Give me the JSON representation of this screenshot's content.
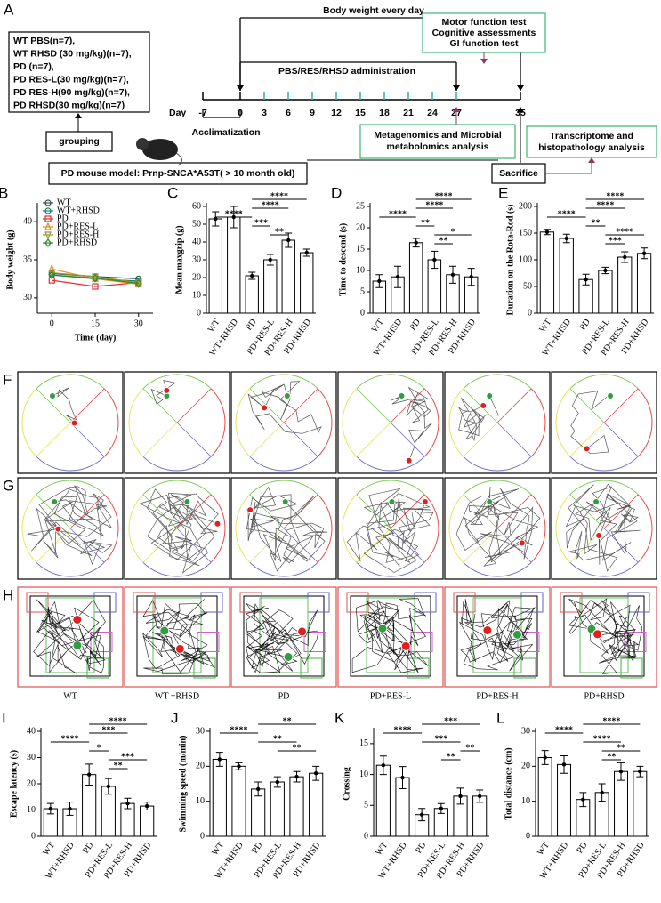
{
  "diagram": {
    "label": "A",
    "groups": [
      "WT PBS(n=7),",
      "WT RHSD (30 mg/kg)(n=7),",
      "PD (n=7),",
      "PD RES-L(30 mg/kg)(n=7),",
      "PD RES-H(90 mg/kg)(n=7),",
      "PD RHSD(30 mg/kg)(n=7)"
    ],
    "grouping": "grouping",
    "model": "PD mouse model: Prnp-SNCA*A53T( > 10 month old)",
    "body_weight": "Body weight every day",
    "tests": [
      "Motor function test",
      "Cognitive assessments",
      "GI function test"
    ],
    "administration": "PBS/RES/RHSD administration",
    "day_label": "Day",
    "days": [
      -7,
      0,
      3,
      6,
      9,
      12,
      15,
      18,
      21,
      24,
      27,
      35
    ],
    "acclimatization": "Acclimatization",
    "metagenomics": [
      "Metagenomics and Microbial",
      "metabolomics analysis"
    ],
    "sacrifice": "Sacrifice",
    "transcriptome": [
      "Transcriptome and",
      "histopathology analysis"
    ]
  },
  "trajectories": {
    "labels": [
      "F",
      "G",
      "H"
    ],
    "groups": [
      "WT",
      "WT +RHSD",
      "PD",
      "PD+RES-L",
      "PD+RES-H",
      "PD+RHSD"
    ]
  },
  "chart_data": [
    {
      "type": "line",
      "label": "B",
      "xlabel": "Time (day)",
      "ylabel": "Body weight (g)",
      "x": [
        0,
        15,
        30
      ],
      "xlim": [
        -5,
        35
      ],
      "xticks": [
        0,
        15,
        30
      ],
      "ylim": [
        28,
        42
      ],
      "yticks": [
        30,
        35,
        40
      ],
      "series": [
        {
          "name": "WT",
          "color": "#2f4f4f",
          "marker": "circle",
          "values": [
            33.2,
            32.8,
            32.5
          ]
        },
        {
          "name": "WT+RHSD",
          "color": "#1f7a6a",
          "marker": "circle",
          "values": [
            33.0,
            32.5,
            32.2
          ]
        },
        {
          "name": "PD",
          "color": "#e03030",
          "marker": "square",
          "values": [
            32.3,
            31.5,
            32.0
          ]
        },
        {
          "name": "PD+RES-L",
          "color": "#e8892c",
          "marker": "triangle",
          "values": [
            33.8,
            32.5,
            31.8
          ]
        },
        {
          "name": "PD+RES-H",
          "color": "#9a9a2a",
          "marker": "triangle-down",
          "values": [
            33.3,
            32.8,
            32.0
          ]
        },
        {
          "name": "PD+RHSD",
          "color": "#2e8b2e",
          "marker": "diamond",
          "values": [
            33.0,
            32.6,
            31.9
          ]
        }
      ]
    },
    {
      "type": "bar",
      "label": "C",
      "ylabel": "Mean maxgrip (g)",
      "categories": [
        "WT",
        "WT+RHSD",
        "PD",
        "PD+RES-L",
        "PD+RES-H",
        "PD+RHSD"
      ],
      "values": [
        53,
        54,
        21,
        30,
        41,
        34
      ],
      "errors": [
        4,
        6,
        2,
        3,
        4,
        2
      ],
      "ylim": [
        0,
        60
      ],
      "yticks": [
        0,
        10,
        20,
        30,
        40,
        50,
        60
      ],
      "comparisons": [
        {
          "label": "****",
          "pair": [
            "PD",
            "PD+RHSD"
          ]
        },
        {
          "label": "****",
          "pair": [
            "PD",
            "PD+RES-H"
          ]
        },
        {
          "label": "****",
          "pair": [
            "WT",
            "PD"
          ]
        },
        {
          "label": "***",
          "pair": [
            "PD",
            "PD+RES-L"
          ]
        },
        {
          "label": "**",
          "pair": [
            "PD+RES-L",
            "PD+RES-H"
          ]
        }
      ]
    },
    {
      "type": "bar",
      "label": "D",
      "ylabel": "Time to descend (s)",
      "categories": [
        "WT",
        "WT+RHSD",
        "PD",
        "PD+RES-L",
        "PD+RES-H",
        "PD+RHSD"
      ],
      "values": [
        7.5,
        8.5,
        16.5,
        12.5,
        9,
        8.5
      ],
      "errors": [
        1.5,
        2.5,
        1,
        2,
        2,
        2
      ],
      "ylim": [
        0,
        25
      ],
      "yticks": [
        0,
        5,
        10,
        15,
        20,
        25
      ],
      "comparisons": [
        {
          "label": "****",
          "pair": [
            "PD",
            "PD+RHSD"
          ]
        },
        {
          "label": "****",
          "pair": [
            "PD",
            "PD+RES-H"
          ]
        },
        {
          "label": "****",
          "pair": [
            "WT",
            "PD"
          ]
        },
        {
          "label": "**",
          "pair": [
            "PD",
            "PD+RES-L"
          ]
        },
        {
          "label": "*",
          "pair": [
            "PD+RES-L",
            "PD+RHSD"
          ]
        },
        {
          "label": "**",
          "pair": [
            "PD+RES-L",
            "PD+RES-H"
          ]
        }
      ]
    },
    {
      "type": "bar",
      "label": "E",
      "ylabel": "Duration on the Rota-Rod (s)",
      "categories": [
        "WT",
        "WT+RHSD",
        "PD",
        "PD+RES-L",
        "PD+RES-H",
        "PD+RHSD"
      ],
      "values": [
        152,
        140,
        63,
        80,
        105,
        112
      ],
      "errors": [
        5,
        8,
        10,
        6,
        10,
        10
      ],
      "ylim": [
        0,
        200
      ],
      "yticks": [
        0,
        50,
        100,
        150,
        200
      ],
      "comparisons": [
        {
          "label": "****",
          "pair": [
            "PD",
            "PD+RHSD"
          ]
        },
        {
          "label": "****",
          "pair": [
            "PD",
            "PD+RES-H"
          ]
        },
        {
          "label": "****",
          "pair": [
            "WT",
            "PD"
          ]
        },
        {
          "label": "**",
          "pair": [
            "PD",
            "PD+RES-L"
          ]
        },
        {
          "label": "****",
          "pair": [
            "PD+RES-L",
            "PD+RHSD"
          ]
        },
        {
          "label": "***",
          "pair": [
            "PD+RES-L",
            "PD+RES-H"
          ]
        }
      ]
    },
    {
      "type": "bar",
      "label": "I",
      "ylabel": "Escape latency (s)",
      "categories": [
        "WT",
        "WT+RHSD",
        "PD",
        "PD+RES-L",
        "PD+RES-H",
        "PD+RHSD"
      ],
      "values": [
        10.5,
        10.5,
        23.5,
        19,
        12.5,
        11.5
      ],
      "errors": [
        2,
        2.5,
        4,
        3,
        2,
        1.5
      ],
      "ylim": [
        0,
        40
      ],
      "yticks": [
        0,
        10,
        20,
        30,
        40
      ],
      "comparisons": [
        {
          "label": "****",
          "pair": [
            "PD",
            "PD+RHSD"
          ]
        },
        {
          "label": "***",
          "pair": [
            "PD",
            "PD+RES-H"
          ]
        },
        {
          "label": "****",
          "pair": [
            "WT",
            "PD"
          ]
        },
        {
          "label": "*",
          "pair": [
            "PD",
            "PD+RES-L"
          ]
        },
        {
          "label": "***",
          "pair": [
            "PD+RES-L",
            "PD+RHSD"
          ]
        },
        {
          "label": "**",
          "pair": [
            "PD+RES-L",
            "PD+RES-H"
          ]
        }
      ]
    },
    {
      "type": "bar",
      "label": "J",
      "ylabel": "Swimming speed (m/min)",
      "categories": [
        "WT",
        "WT+RHSD",
        "PD",
        "PD+RES-L",
        "PD+RES-H",
        "PD+RHSD"
      ],
      "values": [
        22,
        20,
        13.5,
        15.5,
        17,
        18
      ],
      "errors": [
        2,
        1,
        2,
        1.5,
        1.5,
        2
      ],
      "ylim": [
        0,
        30
      ],
      "yticks": [
        0,
        10,
        20,
        30
      ],
      "comparisons": [
        {
          "label": "**",
          "pair": [
            "PD",
            "PD+RHSD"
          ]
        },
        {
          "label": "****",
          "pair": [
            "WT",
            "PD"
          ]
        },
        {
          "label": "**",
          "pair": [
            "PD",
            "PD+RES-H"
          ]
        },
        {
          "label": "**",
          "pair": [
            "PD+RES-L",
            "PD+RHSD"
          ]
        }
      ]
    },
    {
      "type": "bar",
      "label": "K",
      "ylabel": "Crossing",
      "categories": [
        "WT",
        "WT+RHSD",
        "PD",
        "PD+RES-L",
        "PD+RES-H",
        "PD+RHSD"
      ],
      "values": [
        11.5,
        9.5,
        3.5,
        4.5,
        6.5,
        6.5
      ],
      "errors": [
        1.5,
        1.8,
        1,
        0.8,
        1.3,
        1
      ],
      "ylim": [
        0,
        17
      ],
      "yticks": [
        0,
        5,
        10,
        15
      ],
      "comparisons": [
        {
          "label": "***",
          "pair": [
            "PD",
            "PD+RHSD"
          ]
        },
        {
          "label": "****",
          "pair": [
            "WT",
            "PD"
          ]
        },
        {
          "label": "***",
          "pair": [
            "PD",
            "PD+RES-H"
          ]
        },
        {
          "label": "**",
          "pair": [
            "PD+RES-H",
            "PD+RHSD"
          ]
        },
        {
          "label": "**",
          "pair": [
            "PD+RES-L",
            "PD+RES-H"
          ]
        }
      ]
    },
    {
      "type": "bar",
      "label": "L",
      "ylabel": "Total distance (cm)",
      "categories": [
        "WT",
        "WT+RHSD",
        "PD",
        "PD+RES-L",
        "PD+RES-H",
        "PD+RHSD"
      ],
      "values": [
        22.5,
        20.5,
        10.5,
        12.5,
        18.5,
        18.5
      ],
      "errors": [
        2,
        2.5,
        2,
        2.5,
        2.5,
        1.5
      ],
      "ylim": [
        0,
        30
      ],
      "yticks": [
        0,
        10,
        20,
        30
      ],
      "comparisons": [
        {
          "label": "****",
          "pair": [
            "PD",
            "PD+RHSD"
          ]
        },
        {
          "label": "****",
          "pair": [
            "WT",
            "PD"
          ]
        },
        {
          "label": "****",
          "pair": [
            "PD",
            "PD+RES-H"
          ]
        },
        {
          "label": "**",
          "pair": [
            "PD+RES-L",
            "PD+RHSD"
          ]
        },
        {
          "label": "**",
          "pair": [
            "PD+RES-L",
            "PD+RES-H"
          ]
        }
      ]
    }
  ]
}
